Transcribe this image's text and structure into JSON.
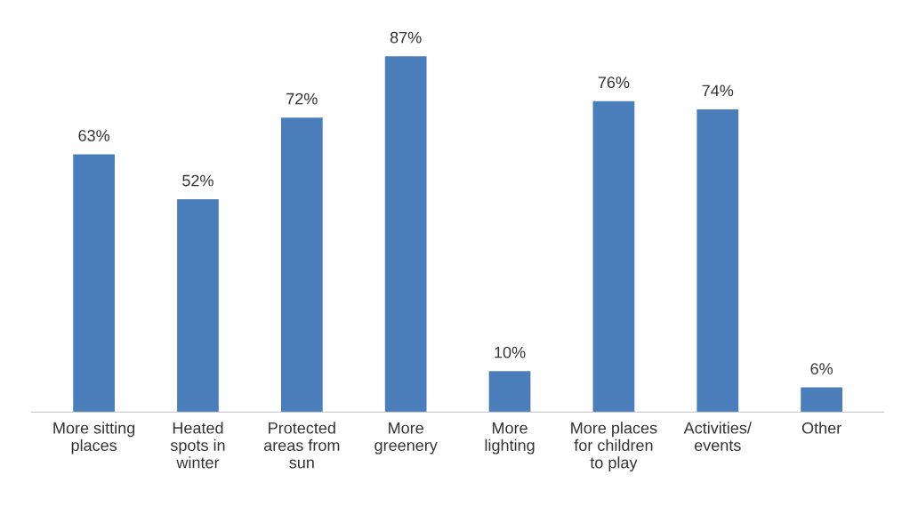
{
  "chart_data": {
    "type": "bar",
    "categories": [
      "More sitting\nplaces",
      "Heated\nspots in\nwinter",
      "Protected\nareas from\nsun",
      "More\ngreenery",
      "More\nlighting",
      "More places\nfor children\nto play",
      "Activities/\nevents",
      "Other"
    ],
    "values": [
      63,
      52,
      72,
      87,
      10,
      76,
      74,
      6
    ],
    "value_labels": [
      "63%",
      "52%",
      "72%",
      "87%",
      "10%",
      "76%",
      "74%",
      "6%"
    ],
    "color": "#4a7ebb",
    "grid": false,
    "legend": false
  }
}
